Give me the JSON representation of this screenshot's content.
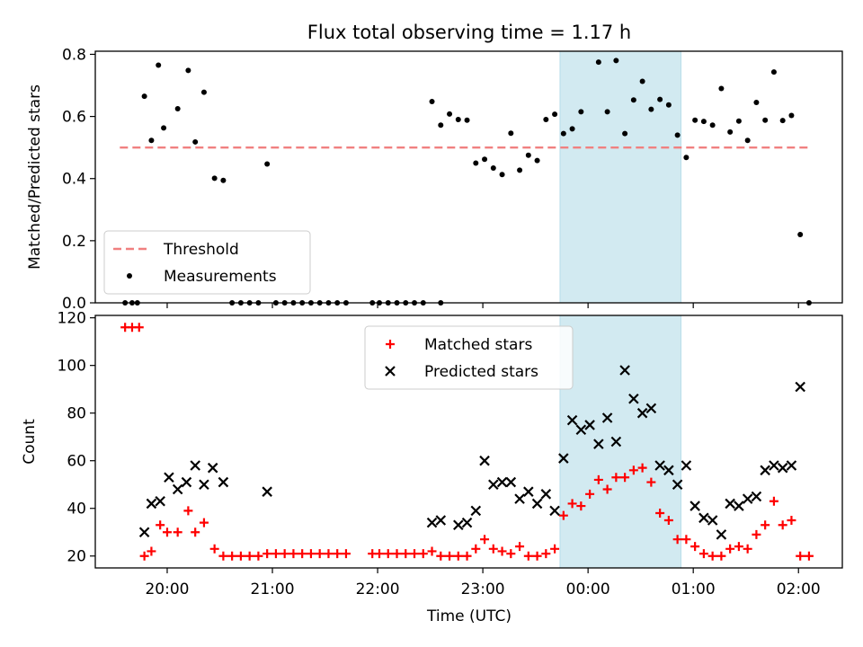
{
  "chart_data": {
    "title": "Flux total observing time = 1.17 h",
    "xlabel": "Time (UTC)",
    "x_range_hours": [
      "19:19",
      "02:25"
    ],
    "x_ticks": [
      "20:00",
      "21:00",
      "22:00",
      "23:00",
      "00:00",
      "01:00",
      "02:00"
    ],
    "highlight_span": {
      "from": "23:44",
      "to": "00:53",
      "color": "#add8e6"
    },
    "panels": [
      {
        "type": "scatter",
        "ylabel": "Matched/Predicted stars",
        "ylim": [
          0,
          0.81
        ],
        "yticks": [
          "0.0",
          "0.2",
          "0.4",
          "0.6",
          "0.8"
        ],
        "legend_position": "lower-left",
        "threshold": {
          "name": "Threshold",
          "value": 0.5,
          "from": "19:33",
          "to": "02:07",
          "color": "#f08080"
        },
        "series": [
          {
            "name": "Measurements",
            "marker": "dot",
            "color": "#000000",
            "points": [
              [
                "19:36",
                0.0
              ],
              [
                "19:40",
                0.0
              ],
              [
                "19:43",
                0.0
              ],
              [
                "19:47",
                0.665
              ],
              [
                "19:51",
                0.523
              ],
              [
                "19:55",
                0.765
              ],
              [
                "19:58",
                0.563
              ],
              [
                "20:06",
                0.625
              ],
              [
                "20:12",
                0.748
              ],
              [
                "20:16",
                0.518
              ],
              [
                "20:21",
                0.678
              ],
              [
                "20:27",
                0.401
              ],
              [
                "20:32",
                0.394
              ],
              [
                "20:37",
                0.0
              ],
              [
                "20:42",
                0.0
              ],
              [
                "20:47",
                0.0
              ],
              [
                "20:52",
                0.0
              ],
              [
                "20:57",
                0.447
              ],
              [
                "21:02",
                0.0
              ],
              [
                "21:07",
                0.0
              ],
              [
                "21:12",
                0.0
              ],
              [
                "21:17",
                0.0
              ],
              [
                "21:22",
                0.0
              ],
              [
                "21:27",
                0.0
              ],
              [
                "21:32",
                0.0
              ],
              [
                "21:37",
                0.0
              ],
              [
                "21:42",
                0.0
              ],
              [
                "21:57",
                0.0
              ],
              [
                "22:01",
                0.0
              ],
              [
                "22:06",
                0.0
              ],
              [
                "22:11",
                0.0
              ],
              [
                "22:16",
                0.0
              ],
              [
                "22:21",
                0.0
              ],
              [
                "22:26",
                0.0
              ],
              [
                "22:36",
                0.0
              ],
              [
                "22:31",
                0.648
              ],
              [
                "22:36",
                0.572
              ],
              [
                "22:41",
                0.608
              ],
              [
                "22:46",
                0.59
              ],
              [
                "22:51",
                0.588
              ],
              [
                "22:56",
                0.45
              ],
              [
                "23:01",
                0.462
              ],
              [
                "23:06",
                0.434
              ],
              [
                "23:11",
                0.413
              ],
              [
                "23:16",
                0.546
              ],
              [
                "23:21",
                0.427
              ],
              [
                "23:26",
                0.475
              ],
              [
                "23:31",
                0.458
              ],
              [
                "23:36",
                0.59
              ],
              [
                "23:41",
                0.607
              ],
              [
                "23:46",
                0.545
              ],
              [
                "23:51",
                0.56
              ],
              [
                "23:56",
                0.615
              ],
              [
                "00:06",
                0.775
              ],
              [
                "00:11",
                0.615
              ],
              [
                "00:16",
                0.78
              ],
              [
                "00:21",
                0.545
              ],
              [
                "00:26",
                0.653
              ],
              [
                "00:31",
                0.713
              ],
              [
                "00:36",
                0.623
              ],
              [
                "00:41",
                0.655
              ],
              [
                "00:46",
                0.637
              ],
              [
                "00:51",
                0.54
              ],
              [
                "00:56",
                0.468
              ],
              [
                "01:01",
                0.588
              ],
              [
                "01:06",
                0.584
              ],
              [
                "01:11",
                0.572
              ],
              [
                "01:16",
                0.69
              ],
              [
                "01:21",
                0.55
              ],
              [
                "01:26",
                0.585
              ],
              [
                "01:31",
                0.523
              ],
              [
                "01:36",
                0.645
              ],
              [
                "01:41",
                0.588
              ],
              [
                "01:46",
                0.743
              ],
              [
                "01:51",
                0.587
              ],
              [
                "01:56",
                0.603
              ],
              [
                "02:01",
                0.22
              ],
              [
                "02:06",
                0.0
              ]
            ]
          }
        ]
      },
      {
        "type": "scatter",
        "ylabel": "Count",
        "ylim": [
          15,
          121
        ],
        "yticks": [
          "20",
          "40",
          "60",
          "80",
          "100",
          "120"
        ],
        "legend_position": "top-center",
        "series": [
          {
            "name": "Matched stars",
            "marker": "plus",
            "color": "#ff0000",
            "points": [
              [
                "19:36",
                116
              ],
              [
                "19:40",
                116
              ],
              [
                "19:44",
                116
              ],
              [
                "19:47",
                20
              ],
              [
                "19:51",
                22
              ],
              [
                "19:56",
                33
              ],
              [
                "20:00",
                30
              ],
              [
                "20:06",
                30
              ],
              [
                "20:12",
                39
              ],
              [
                "20:16",
                30
              ],
              [
                "20:21",
                34
              ],
              [
                "20:27",
                23
              ],
              [
                "20:32",
                20
              ],
              [
                "20:37",
                20
              ],
              [
                "20:42",
                20
              ],
              [
                "20:47",
                20
              ],
              [
                "20:52",
                20
              ],
              [
                "20:57",
                21
              ],
              [
                "21:02",
                21
              ],
              [
                "21:07",
                21
              ],
              [
                "21:12",
                21
              ],
              [
                "21:17",
                21
              ],
              [
                "21:22",
                21
              ],
              [
                "21:27",
                21
              ],
              [
                "21:32",
                21
              ],
              [
                "21:37",
                21
              ],
              [
                "21:42",
                21
              ],
              [
                "21:57",
                21
              ],
              [
                "22:01",
                21
              ],
              [
                "22:06",
                21
              ],
              [
                "22:11",
                21
              ],
              [
                "22:16",
                21
              ],
              [
                "22:21",
                21
              ],
              [
                "22:26",
                21
              ],
              [
                "22:31",
                22
              ],
              [
                "22:36",
                20
              ],
              [
                "22:41",
                20
              ],
              [
                "22:46",
                20
              ],
              [
                "22:51",
                20
              ],
              [
                "22:56",
                23
              ],
              [
                "23:01",
                27
              ],
              [
                "23:06",
                23
              ],
              [
                "23:11",
                22
              ],
              [
                "23:16",
                21
              ],
              [
                "23:21",
                24
              ],
              [
                "23:26",
                20
              ],
              [
                "23:31",
                20
              ],
              [
                "23:36",
                21
              ],
              [
                "23:41",
                23
              ],
              [
                "23:46",
                37
              ],
              [
                "23:51",
                42
              ],
              [
                "23:56",
                41
              ],
              [
                "00:01",
                46
              ],
              [
                "00:06",
                52
              ],
              [
                "00:11",
                48
              ],
              [
                "00:16",
                53
              ],
              [
                "00:21",
                53
              ],
              [
                "00:26",
                56
              ],
              [
                "00:31",
                57
              ],
              [
                "00:36",
                51
              ],
              [
                "00:41",
                38
              ],
              [
                "00:46",
                35
              ],
              [
                "00:51",
                27
              ],
              [
                "00:56",
                27
              ],
              [
                "01:01",
                24
              ],
              [
                "01:06",
                21
              ],
              [
                "01:11",
                20
              ],
              [
                "01:16",
                20
              ],
              [
                "01:21",
                23
              ],
              [
                "01:26",
                24
              ],
              [
                "01:31",
                23
              ],
              [
                "01:36",
                29
              ],
              [
                "01:41",
                33
              ],
              [
                "01:46",
                43
              ],
              [
                "01:51",
                33
              ],
              [
                "01:56",
                35
              ],
              [
                "02:01",
                20
              ],
              [
                "02:06",
                20
              ]
            ]
          },
          {
            "name": "Predicted stars",
            "marker": "x",
            "color": "#000000",
            "points": [
              [
                "19:47",
                30
              ],
              [
                "19:51",
                42
              ],
              [
                "19:56",
                43
              ],
              [
                "20:01",
                53
              ],
              [
                "20:06",
                48
              ],
              [
                "20:11",
                51
              ],
              [
                "20:16",
                58
              ],
              [
                "20:21",
                50
              ],
              [
                "20:26",
                57
              ],
              [
                "20:32",
                51
              ],
              [
                "20:57",
                47
              ],
              [
                "22:31",
                34
              ],
              [
                "22:36",
                35
              ],
              [
                "22:46",
                33
              ],
              [
                "22:51",
                34
              ],
              [
                "22:56",
                39
              ],
              [
                "23:01",
                60
              ],
              [
                "23:06",
                50
              ],
              [
                "23:11",
                51
              ],
              [
                "23:16",
                51
              ],
              [
                "23:21",
                44
              ],
              [
                "23:26",
                47
              ],
              [
                "23:31",
                42
              ],
              [
                "23:36",
                46
              ],
              [
                "23:41",
                39
              ],
              [
                "23:46",
                61
              ],
              [
                "23:51",
                77
              ],
              [
                "23:56",
                73
              ],
              [
                "00:01",
                75
              ],
              [
                "00:06",
                67
              ],
              [
                "00:11",
                78
              ],
              [
                "00:16",
                68
              ],
              [
                "00:21",
                98
              ],
              [
                "00:26",
                86
              ],
              [
                "00:31",
                80
              ],
              [
                "00:36",
                82
              ],
              [
                "00:41",
                58
              ],
              [
                "00:46",
                56
              ],
              [
                "00:51",
                50
              ],
              [
                "00:56",
                58
              ],
              [
                "01:01",
                41
              ],
              [
                "01:06",
                36
              ],
              [
                "01:11",
                35
              ],
              [
                "01:16",
                29
              ],
              [
                "01:21",
                42
              ],
              [
                "01:26",
                41
              ],
              [
                "01:31",
                44
              ],
              [
                "01:36",
                45
              ],
              [
                "01:41",
                56
              ],
              [
                "01:46",
                58
              ],
              [
                "01:51",
                57
              ],
              [
                "01:56",
                58
              ],
              [
                "02:01",
                91
              ]
            ]
          }
        ]
      }
    ]
  }
}
